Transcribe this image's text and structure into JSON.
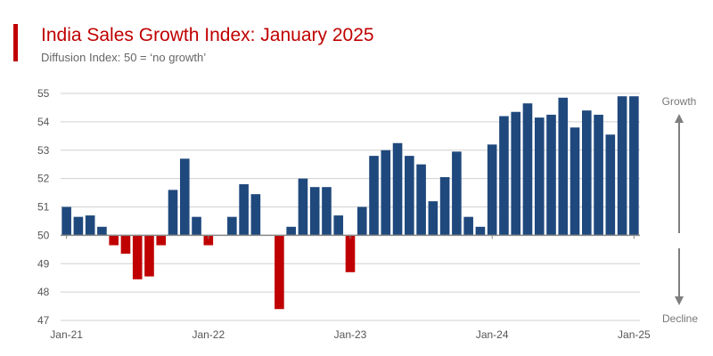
{
  "header": {
    "title": "India Sales Growth Index: January 2025",
    "subtitle": "Diffusion Index: 50 = ‘no growth’"
  },
  "colors": {
    "accent": "#c00000",
    "growth": "#1f497d",
    "decline": "#c00000",
    "grid": "#d0d0d0",
    "arrow": "#7f7f7f"
  },
  "chart_data": {
    "type": "bar",
    "baseline": 50,
    "ylim": [
      47,
      55
    ],
    "yticks": [
      47,
      48,
      49,
      50,
      51,
      52,
      53,
      54,
      55
    ],
    "grid": true,
    "x_tick_labels": [
      "Jan-21",
      "Jan-22",
      "Jan-23",
      "Jan-24",
      "Jan-25"
    ],
    "x_tick_indices": [
      0,
      12,
      24,
      36,
      48
    ],
    "categories": [
      "Jan-21",
      "Feb-21",
      "Mar-21",
      "Apr-21",
      "May-21",
      "Jun-21",
      "Jul-21",
      "Aug-21",
      "Sep-21",
      "Oct-21",
      "Nov-21",
      "Dec-21",
      "Jan-22",
      "Feb-22",
      "Mar-22",
      "Apr-22",
      "May-22",
      "Jun-22",
      "Jul-22",
      "Aug-22",
      "Sep-22",
      "Oct-22",
      "Nov-22",
      "Dec-22",
      "Jan-23",
      "Feb-23",
      "Mar-23",
      "Apr-23",
      "May-23",
      "Jun-23",
      "Jul-23",
      "Aug-23",
      "Sep-23",
      "Oct-23",
      "Nov-23",
      "Dec-23",
      "Jan-24",
      "Feb-24",
      "Mar-24",
      "Apr-24",
      "May-24",
      "Jun-24",
      "Jul-24",
      "Aug-24",
      "Sep-24",
      "Oct-24",
      "Nov-24",
      "Dec-24",
      "Jan-25"
    ],
    "values": [
      51.0,
      50.65,
      50.7,
      50.3,
      49.65,
      49.35,
      48.45,
      48.55,
      49.65,
      51.6,
      52.7,
      50.65,
      49.65,
      50.0,
      50.65,
      51.8,
      51.45,
      50.0,
      47.4,
      50.3,
      52.0,
      51.7,
      51.7,
      50.7,
      48.7,
      51.0,
      52.8,
      53.0,
      53.25,
      52.8,
      52.5,
      51.2,
      52.05,
      52.95,
      50.65,
      50.3,
      53.2,
      54.2,
      54.35,
      54.65,
      54.15,
      54.25,
      54.85,
      53.8,
      54.4,
      54.25,
      53.55,
      54.9,
      54.9
    ],
    "side_labels": {
      "up": "Growth",
      "down": "Decline"
    }
  }
}
